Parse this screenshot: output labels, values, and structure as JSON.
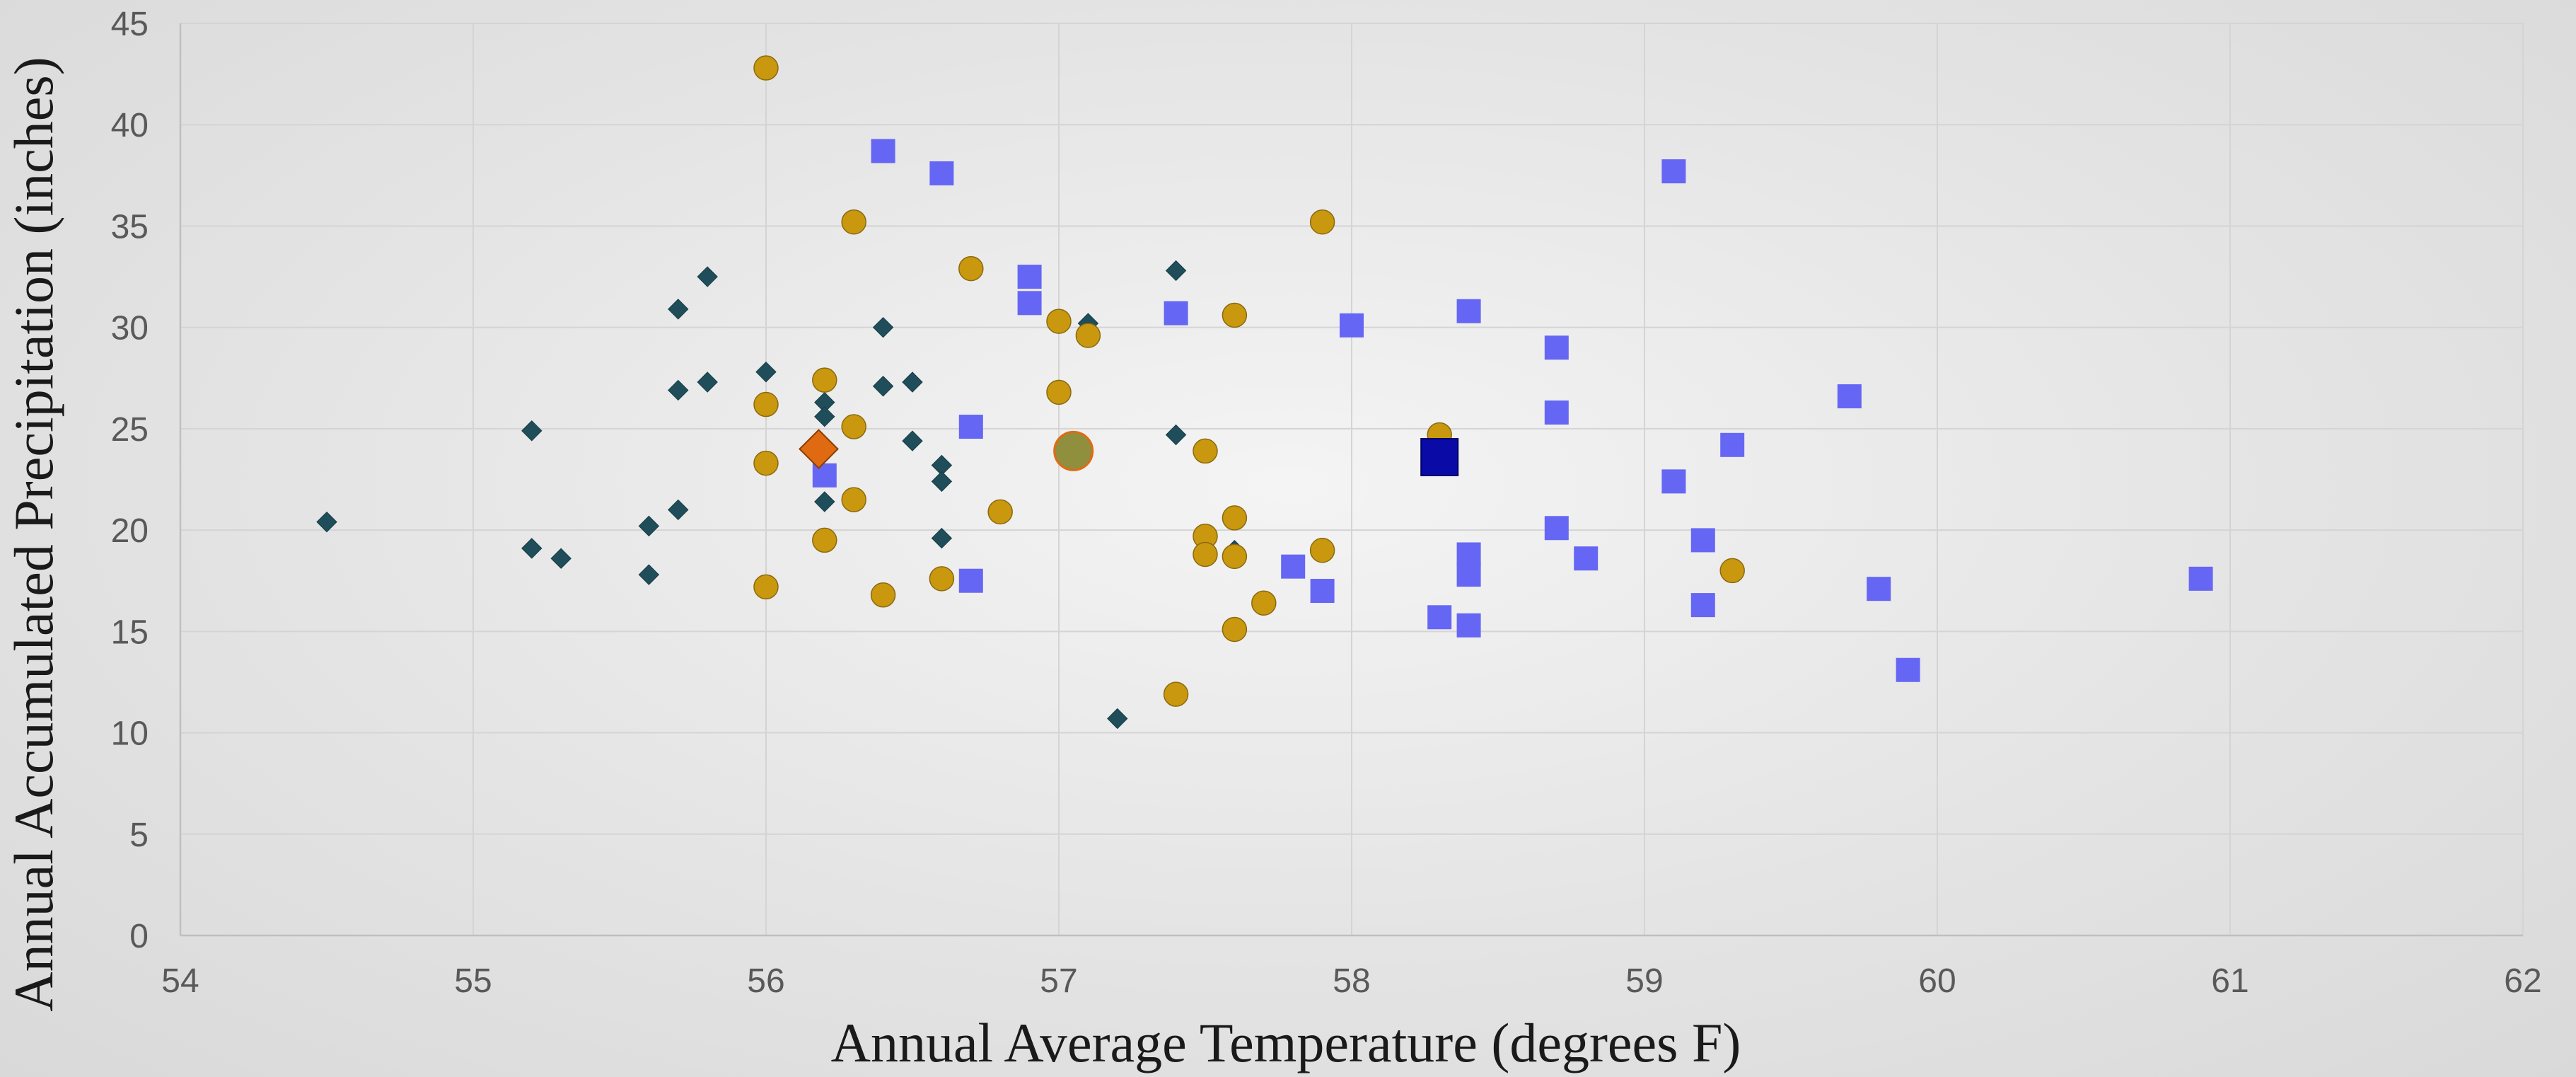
{
  "chart_data": {
    "type": "scatter",
    "title": "",
    "xlabel": "Annual Average Temperature (degrees F)",
    "ylabel": "Annual Accumulated Precipitation (inches)",
    "xlim": [
      54,
      62
    ],
    "ylim": [
      0,
      45
    ],
    "x_ticks": [
      "54",
      "55",
      "56",
      "57",
      "58",
      "59",
      "60",
      "61",
      "62"
    ],
    "y_ticks": [
      "0",
      "5",
      "10",
      "15",
      "20",
      "25",
      "30",
      "35",
      "40",
      "45"
    ],
    "grid": true,
    "legend": "none",
    "series": [
      {
        "marker": "diamond",
        "color": "#1f4e5a",
        "points": [
          [
            54.5,
            20.4
          ],
          [
            55.2,
            24.9
          ],
          [
            55.2,
            19.1
          ],
          [
            55.3,
            18.6
          ],
          [
            55.6,
            20.2
          ],
          [
            55.6,
            17.8
          ],
          [
            55.7,
            30.9
          ],
          [
            55.7,
            26.9
          ],
          [
            55.7,
            21.0
          ],
          [
            55.8,
            32.5
          ],
          [
            55.8,
            27.3
          ],
          [
            56.0,
            27.8
          ],
          [
            56.2,
            26.3
          ],
          [
            56.2,
            25.6
          ],
          [
            56.2,
            21.4
          ],
          [
            56.4,
            30.0
          ],
          [
            56.4,
            27.1
          ],
          [
            56.5,
            27.3
          ],
          [
            56.5,
            24.4
          ],
          [
            56.6,
            23.2
          ],
          [
            56.6,
            22.4
          ],
          [
            56.6,
            19.6
          ],
          [
            57.1,
            30.2
          ],
          [
            57.2,
            10.7
          ],
          [
            57.4,
            32.8
          ],
          [
            57.4,
            24.7
          ],
          [
            57.6,
            19.0
          ]
        ]
      },
      {
        "marker": "circle",
        "color": "#c9980e",
        "points": [
          [
            56.0,
            42.8
          ],
          [
            56.0,
            26.2
          ],
          [
            56.0,
            23.3
          ],
          [
            56.0,
            17.2
          ],
          [
            56.2,
            27.4
          ],
          [
            56.2,
            19.5
          ],
          [
            56.3,
            35.2
          ],
          [
            56.3,
            25.1
          ],
          [
            56.3,
            21.5
          ],
          [
            56.4,
            16.8
          ],
          [
            56.6,
            17.6
          ],
          [
            56.7,
            32.9
          ],
          [
            56.8,
            20.9
          ],
          [
            57.0,
            30.3
          ],
          [
            57.0,
            26.8
          ],
          [
            57.1,
            29.6
          ],
          [
            57.4,
            11.9
          ],
          [
            57.5,
            23.9
          ],
          [
            57.5,
            19.7
          ],
          [
            57.5,
            18.8
          ],
          [
            57.6,
            30.6
          ],
          [
            57.6,
            20.6
          ],
          [
            57.6,
            18.7
          ],
          [
            57.6,
            15.1
          ],
          [
            57.7,
            16.4
          ],
          [
            57.9,
            35.2
          ],
          [
            57.9,
            19.0
          ],
          [
            58.3,
            24.7
          ],
          [
            59.3,
            18.0
          ]
        ]
      },
      {
        "marker": "square",
        "color": "#6666f5",
        "points": [
          [
            56.2,
            22.7
          ],
          [
            56.4,
            38.7
          ],
          [
            56.6,
            37.6
          ],
          [
            56.7,
            25.1
          ],
          [
            56.7,
            17.5
          ],
          [
            56.9,
            32.5
          ],
          [
            56.9,
            31.2
          ],
          [
            57.4,
            30.7
          ],
          [
            57.8,
            18.2
          ],
          [
            57.9,
            17.0
          ],
          [
            58.0,
            30.1
          ],
          [
            58.3,
            15.7
          ],
          [
            58.4,
            30.8
          ],
          [
            58.4,
            18.8
          ],
          [
            58.4,
            17.8
          ],
          [
            58.4,
            15.3
          ],
          [
            58.7,
            29.0
          ],
          [
            58.7,
            25.8
          ],
          [
            58.7,
            20.1
          ],
          [
            58.8,
            18.6
          ],
          [
            59.1,
            37.7
          ],
          [
            59.1,
            22.4
          ],
          [
            59.2,
            19.5
          ],
          [
            59.2,
            16.3
          ],
          [
            59.3,
            24.2
          ],
          [
            59.7,
            26.6
          ],
          [
            59.8,
            17.1
          ],
          [
            59.9,
            13.1
          ],
          [
            60.9,
            17.6
          ]
        ]
      }
    ],
    "averages": [
      {
        "marker": "diamond",
        "color": "#e06a12",
        "x": 56.18,
        "y": 24.0
      },
      {
        "marker": "circle",
        "color": "#8f8f3e",
        "x": 57.05,
        "y": 23.9
      },
      {
        "marker": "square",
        "color": "#0a0aa6",
        "x": 58.3,
        "y": 23.6
      }
    ]
  }
}
